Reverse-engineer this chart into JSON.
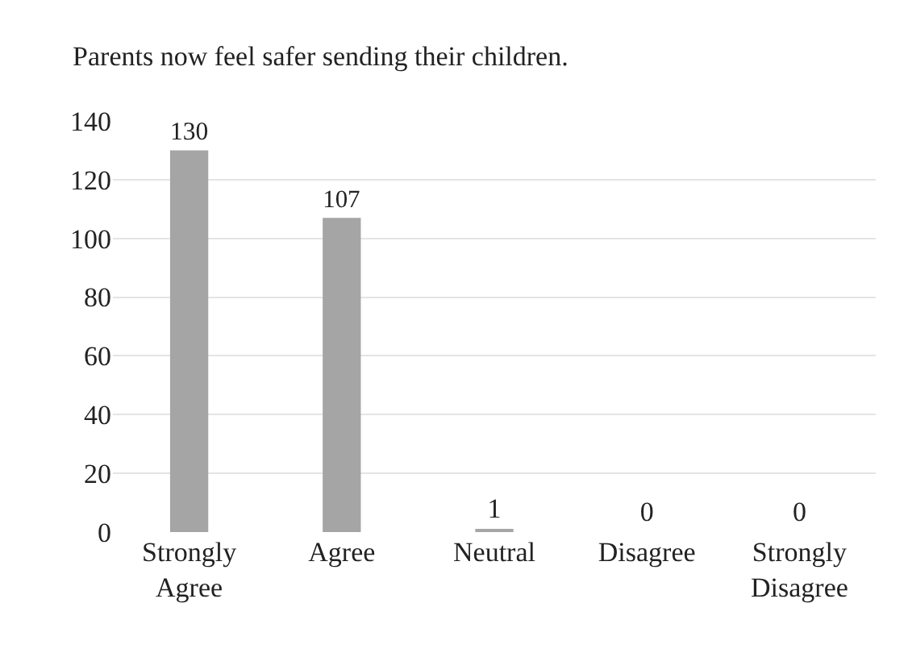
{
  "chart_data": {
    "type": "bar",
    "title": "Parents now feel safer sending their children.",
    "categories": [
      "Strongly Agree",
      "Agree",
      "Neutral",
      "Disagree",
      "Strongly Disagree"
    ],
    "values": [
      130,
      107,
      1,
      0,
      0
    ],
    "color": "#a5a5a5",
    "ylim": [
      0,
      140
    ],
    "yticks": [
      0,
      20,
      40,
      60,
      80,
      100,
      120,
      140
    ],
    "grid": "y",
    "data_labels": true,
    "legend": false
  }
}
